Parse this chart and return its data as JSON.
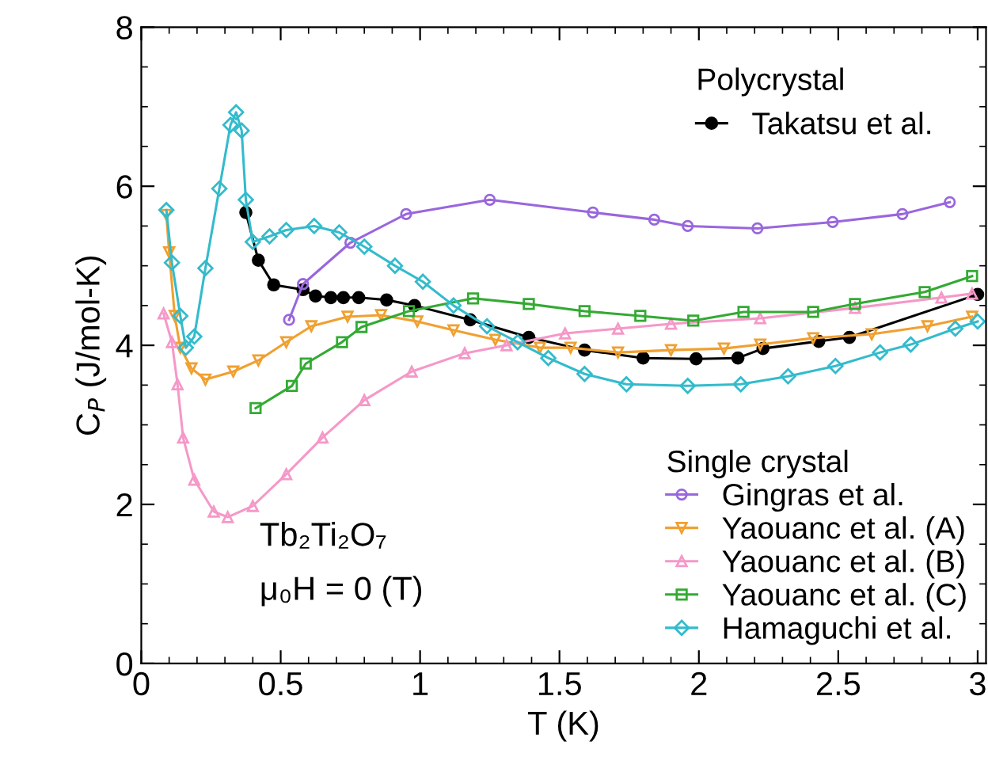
{
  "chart_data": {
    "type": "line",
    "xlabel": "T (K)",
    "ylabel": "C$_{P}$ (J/mol-K)",
    "xlim": [
      0,
      3.03
    ],
    "ylim": [
      0,
      8
    ],
    "xticks": [
      0,
      0.5,
      1,
      1.5,
      2,
      2.5,
      3
    ],
    "yticks": [
      0,
      2,
      4,
      6,
      8
    ],
    "grid": false,
    "legend": "right",
    "annotations": [
      "Polycrystal",
      "Single crystal",
      "Tb₂Ti₂O₇",
      "μ₀H = 0 (T)"
    ],
    "series": [
      {
        "name": "Takatsu et al.",
        "color": "#000000",
        "marker": "circle",
        "x": [
          0.375,
          0.42,
          0.475,
          0.58,
          0.625,
          0.68,
          0.725,
          0.78,
          0.88,
          0.98,
          1.18,
          1.39,
          1.59,
          1.8,
          1.99,
          2.14,
          2.23,
          2.43,
          2.54,
          3.0
        ],
        "values": [
          5.67,
          5.07,
          4.76,
          4.7,
          4.62,
          4.6,
          4.6,
          4.6,
          4.57,
          4.5,
          4.32,
          4.1,
          3.94,
          3.84,
          3.83,
          3.84,
          3.96,
          4.05,
          4.1,
          4.64
        ]
      },
      {
        "name": "Gingras et al.",
        "color": "#9966dd",
        "marker": "circle",
        "x": [
          0.53,
          0.58,
          0.75,
          0.95,
          1.25,
          1.62,
          1.84,
          1.96,
          2.21,
          2.48,
          2.73,
          2.9
        ],
        "values": [
          4.32,
          4.77,
          5.29,
          5.65,
          5.83,
          5.67,
          5.58,
          5.5,
          5.47,
          5.55,
          5.65,
          5.8
        ]
      },
      {
        "name": "Yaouanc et al. (A)",
        "color": "#f0a030",
        "marker": "triangle_down",
        "x": [
          0.09,
          0.1,
          0.12,
          0.14,
          0.18,
          0.23,
          0.33,
          0.42,
          0.52,
          0.61,
          0.74,
          0.86,
          0.99,
          1.12,
          1.27,
          1.43,
          1.54,
          1.71,
          1.9,
          2.09,
          2.22,
          2.41,
          2.62,
          2.82,
          2.98
        ],
        "values": [
          5.64,
          5.17,
          4.37,
          3.97,
          3.71,
          3.57,
          3.67,
          3.81,
          4.04,
          4.24,
          4.36,
          4.38,
          4.3,
          4.19,
          4.07,
          3.97,
          3.97,
          3.91,
          3.94,
          3.96,
          4.01,
          4.09,
          4.14,
          4.24,
          4.36
        ]
      },
      {
        "name": "Yaouanc et al. (B)",
        "color": "#f598c8",
        "marker": "triangle",
        "x": [
          0.08,
          0.11,
          0.13,
          0.15,
          0.19,
          0.26,
          0.31,
          0.4,
          0.52,
          0.65,
          0.8,
          0.97,
          1.16,
          1.31,
          1.52,
          1.71,
          1.9,
          2.22,
          2.56,
          2.87,
          2.98
        ],
        "values": [
          4.4,
          4.04,
          3.51,
          2.84,
          2.31,
          1.91,
          1.84,
          1.98,
          2.38,
          2.84,
          3.31,
          3.67,
          3.9,
          4.0,
          4.15,
          4.21,
          4.27,
          4.34,
          4.47,
          4.6,
          4.65
        ]
      },
      {
        "name": "Yaouanc et al. (C)",
        "color": "#33aa33",
        "marker": "square",
        "x": [
          0.41,
          0.54,
          0.59,
          0.72,
          0.79,
          0.96,
          1.19,
          1.39,
          1.59,
          1.79,
          1.98,
          2.16,
          2.41,
          2.56,
          2.81,
          2.98
        ],
        "values": [
          3.21,
          3.49,
          3.77,
          4.04,
          4.23,
          4.43,
          4.59,
          4.52,
          4.43,
          4.37,
          4.31,
          4.42,
          4.42,
          4.52,
          4.67,
          4.87
        ]
      },
      {
        "name": "Hamaguchi et al.",
        "color": "#33bbcc",
        "marker": "diamond",
        "x": [
          0.09,
          0.11,
          0.14,
          0.16,
          0.19,
          0.23,
          0.28,
          0.32,
          0.34,
          0.36,
          0.375,
          0.4,
          0.46,
          0.52,
          0.62,
          0.71,
          0.8,
          0.91,
          1.01,
          1.12,
          1.24,
          1.35,
          1.46,
          1.59,
          1.74,
          1.96,
          2.15,
          2.32,
          2.49,
          2.65,
          2.76,
          2.92,
          3.0
        ],
        "values": [
          5.7,
          5.04,
          4.37,
          3.97,
          4.11,
          4.97,
          5.97,
          6.77,
          6.93,
          6.7,
          5.83,
          5.3,
          5.37,
          5.45,
          5.5,
          5.42,
          5.24,
          5.0,
          4.8,
          4.5,
          4.24,
          4.04,
          3.84,
          3.64,
          3.51,
          3.49,
          3.51,
          3.61,
          3.74,
          3.91,
          4.01,
          4.21,
          4.3
        ]
      }
    ]
  }
}
